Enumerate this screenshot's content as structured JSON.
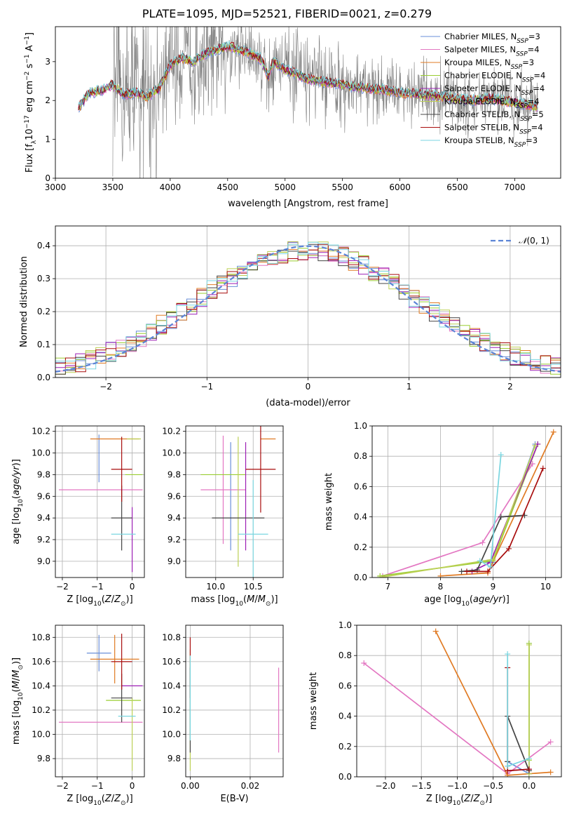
{
  "figure_title": "PLATE=1095, MJD=52521, FIBERID=0021, z=0.279",
  "colors": {
    "chabrier_miles": "#6a8fd8",
    "salpeter_miles": "#e377c2",
    "kroupa_miles": "#e07b24",
    "chabrier_elodie": "#9acd32",
    "salpeter_elodie": "#9c1fb5",
    "kroupa_elodie": "#bcd055",
    "chabrier_stelib": "#444444",
    "salpeter_stelib": "#a80d0d",
    "kroupa_stelib": "#7ad6e0",
    "data_gray": "#808080",
    "normal_curve": "#5b84d6",
    "grid": "#b0b0b0"
  },
  "chart_data": [
    {
      "id": "spectrum",
      "type": "line",
      "xlabel": "wavelength [Angstrom, rest frame]",
      "ylabel": "Flux [f_λ 10^-17 erg cm^-2 s^-1 A^-1]",
      "xlim": [
        3000,
        7400
      ],
      "ylim": [
        0,
        3.9
      ],
      "xticks": [
        3000,
        3500,
        4000,
        4500,
        5000,
        5500,
        6000,
        6500,
        7000
      ],
      "yticks": [
        0,
        1,
        2,
        3
      ],
      "grid": false,
      "legend_position": "upper-right",
      "legend": [
        {
          "label": "Chabrier MILES, N_SSP=3",
          "color_key": "chabrier_miles"
        },
        {
          "label": "Salpeter MILES, N_SSP=4",
          "color_key": "salpeter_miles"
        },
        {
          "label": "Kroupa MILES, N_SSP=3",
          "color_key": "kroupa_miles"
        },
        {
          "label": "Chabrier ELODIE, N_SSP=4",
          "color_key": "chabrier_elodie"
        },
        {
          "label": "Salpeter ELODIE, N_SSP=4",
          "color_key": "salpeter_elodie"
        },
        {
          "label": "Kroupa ELODIE, N_SSP=4",
          "color_key": "kroupa_elodie"
        },
        {
          "label": "Chabrier STELIB, N_SSP=5",
          "color_key": "chabrier_stelib"
        },
        {
          "label": "Salpeter STELIB, N_SSP=4",
          "color_key": "salpeter_stelib"
        },
        {
          "label": "Kroupa STELIB, N_SSP=3",
          "color_key": "kroupa_stelib"
        }
      ],
      "model_continuum": {
        "x": [
          3200,
          3300,
          3400,
          3500,
          3600,
          3700,
          3800,
          3900,
          4000,
          4100,
          4200,
          4300,
          4400,
          4500,
          4600,
          4700,
          4800,
          4850,
          4900,
          5000,
          5200,
          5400,
          5600,
          5800,
          6000,
          6200,
          6400,
          6600,
          6800,
          7000,
          7200
        ],
        "y": [
          1.8,
          2.2,
          2.25,
          2.4,
          2.15,
          2.2,
          2.1,
          2.3,
          2.9,
          3.1,
          3.0,
          3.2,
          3.3,
          3.4,
          3.3,
          3.2,
          3.05,
          2.6,
          3.0,
          2.8,
          2.55,
          2.45,
          2.35,
          2.3,
          2.2,
          2.15,
          2.1,
          2.0,
          2.05,
          1.95,
          1.85
        ]
      },
      "data_noise_region": [
        3500,
        7200
      ]
    },
    {
      "id": "residuals",
      "type": "histogram",
      "xlabel": "(data-model)/error",
      "ylabel": "Normed distribution",
      "xlim": [
        -2.5,
        2.5
      ],
      "ylim": [
        0,
        0.46
      ],
      "xticks": [
        -2,
        -1,
        0,
        1,
        2
      ],
      "yticks": [
        0,
        0.1,
        0.2,
        0.3,
        0.4
      ],
      "grid": true,
      "legend_position": "upper-right",
      "curve_label": "N(0,1)",
      "bins": 50
    },
    {
      "id": "age_vs_Z",
      "type": "errorbar",
      "xlabel": "Z [log10(Z/Z_sun)]",
      "ylabel": "age [log10(age/yr)]",
      "xlim": [
        -2.2,
        0.35
      ],
      "ylim": [
        8.85,
        10.25
      ],
      "xticks": [
        -2,
        -1,
        0
      ],
      "yticks": [
        9.0,
        9.2,
        9.4,
        9.6,
        9.8,
        10.0,
        10.2
      ],
      "grid": true,
      "points": [
        {
          "color_key": "chabrier_miles",
          "x": -0.95,
          "xerr": 0.0,
          "y": 9.95,
          "yerr": 0.22
        },
        {
          "color_key": "salpeter_miles",
          "x": -0.9,
          "xerr": 1.2,
          "y": 9.66,
          "yerr": 0.0
        },
        {
          "color_key": "kroupa_miles",
          "x": -0.5,
          "xerr": 0.7,
          "y": 10.13,
          "yerr": 0.0
        },
        {
          "color_key": "chabrier_elodie",
          "x": 0.05,
          "xerr": 0.25,
          "y": 9.8,
          "yerr": 0.0
        },
        {
          "color_key": "salpeter_elodie",
          "x": 0.0,
          "xerr": 0.0,
          "y": 9.2,
          "yerr": 0.3
        },
        {
          "color_key": "kroupa_elodie",
          "x": 0.05,
          "xerr": 0.2,
          "y": 10.13,
          "yerr": 0.0
        },
        {
          "color_key": "chabrier_stelib",
          "x": -0.3,
          "xerr": 0.3,
          "y": 9.4,
          "yerr": 0.3
        },
        {
          "color_key": "salpeter_stelib",
          "x": -0.3,
          "xerr": 0.3,
          "y": 9.85,
          "yerr": 0.3
        },
        {
          "color_key": "kroupa_stelib",
          "x": -0.25,
          "xerr": 0.35,
          "y": 9.25,
          "yerr": 0.0
        }
      ]
    },
    {
      "id": "age_vs_mass",
      "type": "errorbar",
      "xlabel": "mass [log10(M/M_sun)]",
      "ylabel": "",
      "xlim": [
        9.6,
        10.9
      ],
      "ylim": [
        8.85,
        10.25
      ],
      "xticks": [
        10.0,
        10.5
      ],
      "yticks": [
        9.0,
        9.2,
        9.4,
        9.6,
        9.8,
        10.0,
        10.2
      ],
      "grid": true,
      "points": [
        {
          "color_key": "chabrier_miles",
          "x": 10.2,
          "xerr": 0.0,
          "y": 9.6,
          "yerr": 0.5
        },
        {
          "color_key": "salpeter_miles",
          "x": 10.1,
          "xerr": 0.3,
          "y": 9.66,
          "yerr": 0.5
        },
        {
          "color_key": "kroupa_miles",
          "x": 10.7,
          "xerr": 0.1,
          "y": 10.13,
          "yerr": 0.0
        },
        {
          "color_key": "chabrier_elodie",
          "x": 10.1,
          "xerr": 0.3,
          "y": 9.8,
          "yerr": 0.0
        },
        {
          "color_key": "salpeter_elodie",
          "x": 10.4,
          "xerr": 0.0,
          "y": 9.6,
          "yerr": 0.5
        },
        {
          "color_key": "kroupa_elodie",
          "x": 10.3,
          "xerr": 0.0,
          "y": 9.55,
          "yerr": 0.6
        },
        {
          "color_key": "chabrier_stelib",
          "x": 10.3,
          "xerr": 0.35,
          "y": 9.4,
          "yerr": 0.0
        },
        {
          "color_key": "salpeter_stelib",
          "x": 10.6,
          "xerr": 0.2,
          "y": 9.85,
          "yerr": 0.4
        },
        {
          "color_key": "kroupa_stelib",
          "x": 10.5,
          "xerr": 0.2,
          "y": 9.25,
          "yerr": 0.5
        }
      ]
    },
    {
      "id": "weight_vs_age",
      "type": "line",
      "xlabel": "age [log10(age/yr)]",
      "ylabel": "mass weight",
      "xlim": [
        6.7,
        10.3
      ],
      "ylim": [
        0,
        1
      ],
      "xticks": [
        7,
        8,
        9,
        10
      ],
      "yticks": [
        0.0,
        0.2,
        0.4,
        0.6,
        0.8,
        1.0
      ],
      "grid": true,
      "series": [
        {
          "color_key": "chabrier_miles",
          "x": [
            8.9,
            9.0,
            9.8
          ],
          "y": [
            0.1,
            0.1,
            0.88
          ]
        },
        {
          "color_key": "salpeter_miles",
          "x": [
            6.9,
            8.8,
            9.75
          ],
          "y": [
            0.01,
            0.23,
            0.75
          ]
        },
        {
          "color_key": "kroupa_miles",
          "x": [
            8.0,
            8.9,
            10.15
          ],
          "y": [
            0.01,
            0.03,
            0.96
          ]
        },
        {
          "color_key": "chabrier_elodie",
          "x": [
            6.85,
            9.0,
            9.85
          ],
          "y": [
            0.01,
            0.11,
            0.88
          ]
        },
        {
          "color_key": "salpeter_elodie",
          "x": [
            8.6,
            8.95,
            9.85
          ],
          "y": [
            0.04,
            0.1,
            0.88
          ]
        },
        {
          "color_key": "kroupa_elodie",
          "x": [
            6.85,
            9.0,
            9.8
          ],
          "y": [
            0.0,
            0.12,
            0.87
          ]
        },
        {
          "color_key": "chabrier_stelib",
          "x": [
            8.4,
            8.7,
            9.15,
            9.6
          ],
          "y": [
            0.04,
            0.05,
            0.4,
            0.41
          ]
        },
        {
          "color_key": "salpeter_stelib",
          "x": [
            8.5,
            8.9,
            9.3,
            9.95
          ],
          "y": [
            0.04,
            0.04,
            0.19,
            0.72
          ]
        },
        {
          "color_key": "kroupa_stelib",
          "x": [
            8.75,
            8.95,
            9.15
          ],
          "y": [
            0.11,
            0.07,
            0.81
          ]
        }
      ]
    },
    {
      "id": "mass_vs_Z",
      "type": "errorbar",
      "xlabel": "Z [log10(Z/Z_sun)]",
      "ylabel": "mass [log10(M/M_sun)]",
      "xlim": [
        -2.2,
        0.35
      ],
      "ylim": [
        9.65,
        10.9
      ],
      "xticks": [
        -2,
        -1,
        0
      ],
      "yticks": [
        9.8,
        10.0,
        10.2,
        10.4,
        10.6,
        10.8
      ],
      "grid": true,
      "points": [
        {
          "color_key": "chabrier_miles",
          "x": -0.95,
          "xerr": 0.35,
          "y": 10.67,
          "yerr": 0.15
        },
        {
          "color_key": "salpeter_miles",
          "x": -0.9,
          "xerr": 1.2,
          "y": 10.1,
          "yerr": 0.0
        },
        {
          "color_key": "kroupa_miles",
          "x": -0.5,
          "xerr": 0.7,
          "y": 10.62,
          "yerr": 0.2
        },
        {
          "color_key": "chabrier_elodie",
          "x": -0.25,
          "xerr": 0.5,
          "y": 10.28,
          "yerr": 0.0
        },
        {
          "color_key": "salpeter_elodie",
          "x": 0.0,
          "xerr": 0.3,
          "y": 10.4,
          "yerr": 0.0
        },
        {
          "color_key": "kroupa_elodie",
          "x": 0.0,
          "xerr": 0.0,
          "y": 10.0,
          "yerr": 0.3
        },
        {
          "color_key": "chabrier_stelib",
          "x": -0.3,
          "xerr": 0.3,
          "y": 10.3,
          "yerr": 0.2
        },
        {
          "color_key": "salpeter_stelib",
          "x": -0.3,
          "xerr": 0.3,
          "y": 10.6,
          "yerr": 0.23
        },
        {
          "color_key": "kroupa_stelib",
          "x": -0.15,
          "xerr": 0.25,
          "y": 10.15,
          "yerr": 0.0
        }
      ]
    },
    {
      "id": "mass_vs_ebv",
      "type": "errorbar",
      "xlabel": "E(B-V)",
      "ylabel": "",
      "xlim": [
        -0.0015,
        0.031
      ],
      "ylim": [
        9.65,
        10.9
      ],
      "xticks": [
        0.0,
        0.02
      ],
      "yticks": [
        9.8,
        10.0,
        10.2,
        10.4,
        10.6,
        10.8
      ],
      "grid": true,
      "points": [
        {
          "color_key": "salpeter_miles",
          "x": 0.0295,
          "xerr": 0.0,
          "y": 10.2,
          "yerr": 0.35
        },
        {
          "color_key": "kroupa_elodie",
          "x": 0.0,
          "xerr": 0.0,
          "y": 10.2,
          "yerr": 0.5
        },
        {
          "color_key": "salpeter_stelib",
          "x": 0.0,
          "xerr": 0.0,
          "y": 10.55,
          "yerr": 0.25
        },
        {
          "color_key": "chabrier_stelib",
          "x": 0.0,
          "xerr": 0.0,
          "y": 10.2,
          "yerr": 0.35
        },
        {
          "color_key": "kroupa_stelib",
          "x": 0.0,
          "xerr": 0.0,
          "y": 10.3,
          "yerr": 0.35
        }
      ]
    },
    {
      "id": "weight_vs_Z",
      "type": "line",
      "xlabel": "Z [log10(Z/Z_sun)]",
      "ylabel": "mass weight",
      "xlim": [
        -2.4,
        0.45
      ],
      "ylim": [
        0,
        1
      ],
      "xticks": [
        -2.0,
        -1.5,
        -1.0,
        -0.5,
        0.0
      ],
      "yticks": [
        0.0,
        0.2,
        0.4,
        0.6,
        0.8,
        1.0
      ],
      "grid": true,
      "series": [
        {
          "color_key": "chabrier_miles",
          "x": [
            -0.3,
            0.0,
            0.0
          ],
          "y": [
            0.1,
            0.02,
            0.88
          ]
        },
        {
          "color_key": "salpeter_miles",
          "x": [
            -2.3,
            -0.3,
            0.3
          ],
          "y": [
            0.75,
            0.02,
            0.23
          ]
        },
        {
          "color_key": "kroupa_miles",
          "x": [
            -1.3,
            -0.3,
            0.3
          ],
          "y": [
            0.96,
            0.01,
            0.03
          ]
        },
        {
          "color_key": "chabrier_elodie",
          "x": [
            0.0,
            0.0
          ],
          "y": [
            0.11,
            0.88
          ]
        },
        {
          "color_key": "salpeter_elodie",
          "x": [
            -0.3,
            0.0
          ],
          "y": [
            0.04,
            0.05
          ]
        },
        {
          "color_key": "kroupa_elodie",
          "x": [
            0.0,
            0.0
          ],
          "y": [
            0.02,
            0.87
          ]
        },
        {
          "color_key": "chabrier_stelib",
          "x": [
            -0.3,
            -0.3,
            0.0
          ],
          "y": [
            0.1,
            0.4,
            0.04
          ]
        },
        {
          "color_key": "salpeter_stelib",
          "x": [
            -0.3,
            -0.3,
            0.0
          ],
          "y": [
            0.72,
            0.04,
            0.05
          ]
        },
        {
          "color_key": "kroupa_stelib",
          "x": [
            -0.3,
            -0.3,
            0.0
          ],
          "y": [
            0.81,
            0.07,
            0.12
          ]
        }
      ]
    }
  ]
}
